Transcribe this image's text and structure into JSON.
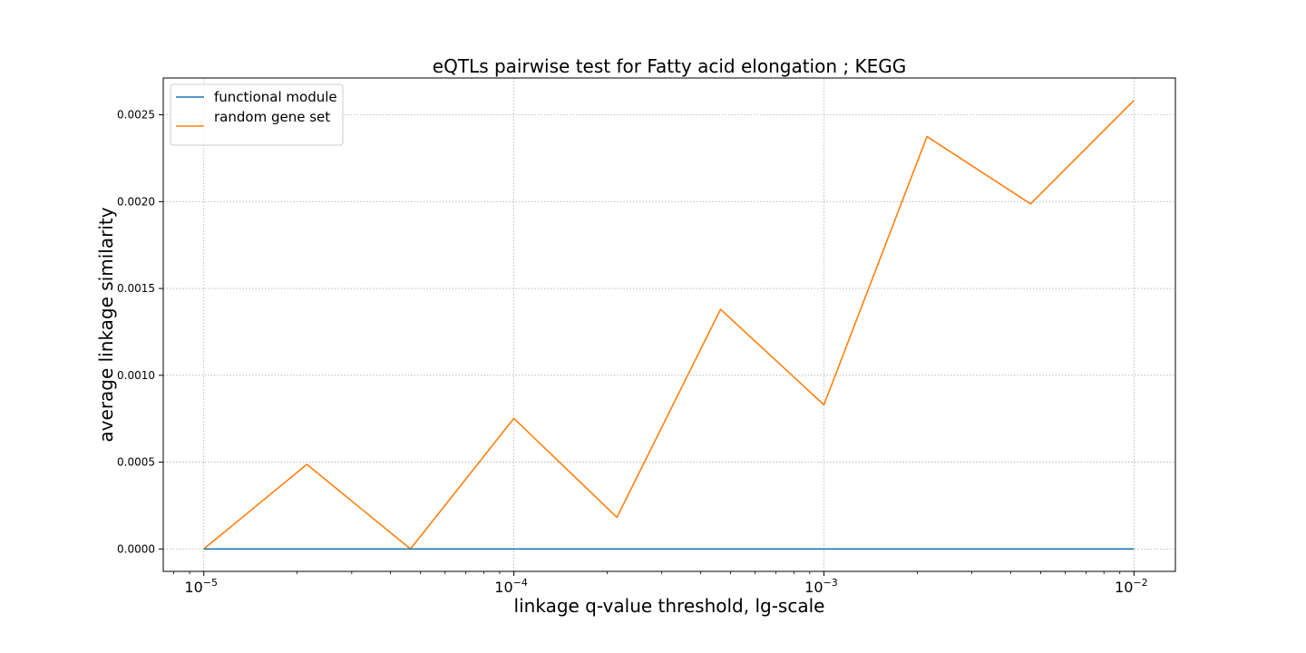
{
  "chart_data": {
    "type": "line",
    "title": "eQTLs pairwise test for Fatty acid elongation ; KEGG",
    "xlabel": "linkage q-value threshold, lg-scale",
    "ylabel": "average linkage similarity",
    "xscale": "log",
    "xlim": [
      7.4e-06,
      0.0136
    ],
    "ylim": [
      -0.000129,
      0.002712
    ],
    "grid": true,
    "legend_position": "top-left",
    "x": [
      1e-05,
      2.15e-05,
      4.64e-05,
      0.0001,
      0.000215,
      0.000464,
      0.001,
      0.00215,
      0.00464,
      0.01
    ],
    "series": [
      {
        "name": "functional module",
        "color": "#1f77b4",
        "values": [
          0,
          0,
          0,
          0,
          0,
          0,
          0,
          0,
          0,
          0
        ]
      },
      {
        "name": "random gene set",
        "color": "#ff7f0e",
        "values": [
          0,
          0.000487,
          0,
          0.000752,
          0.000182,
          0.00138,
          0.00083,
          0.002375,
          0.001987,
          0.002583
        ]
      }
    ],
    "x_ticks": [
      {
        "value": 1e-05,
        "base": "10",
        "exp": "−5"
      },
      {
        "value": 0.0001,
        "base": "10",
        "exp": "−4"
      },
      {
        "value": 0.001,
        "base": "10",
        "exp": "−3"
      },
      {
        "value": 0.01,
        "base": "10",
        "exp": "−2"
      }
    ],
    "y_ticks": [
      {
        "value": 0,
        "label": "0.0000"
      },
      {
        "value": 0.0005,
        "label": "0.0005"
      },
      {
        "value": 0.001,
        "label": "0.0010"
      },
      {
        "value": 0.0015,
        "label": "0.0015"
      },
      {
        "value": 0.002,
        "label": "0.0020"
      },
      {
        "value": 0.0025,
        "label": "0.0025"
      }
    ]
  }
}
